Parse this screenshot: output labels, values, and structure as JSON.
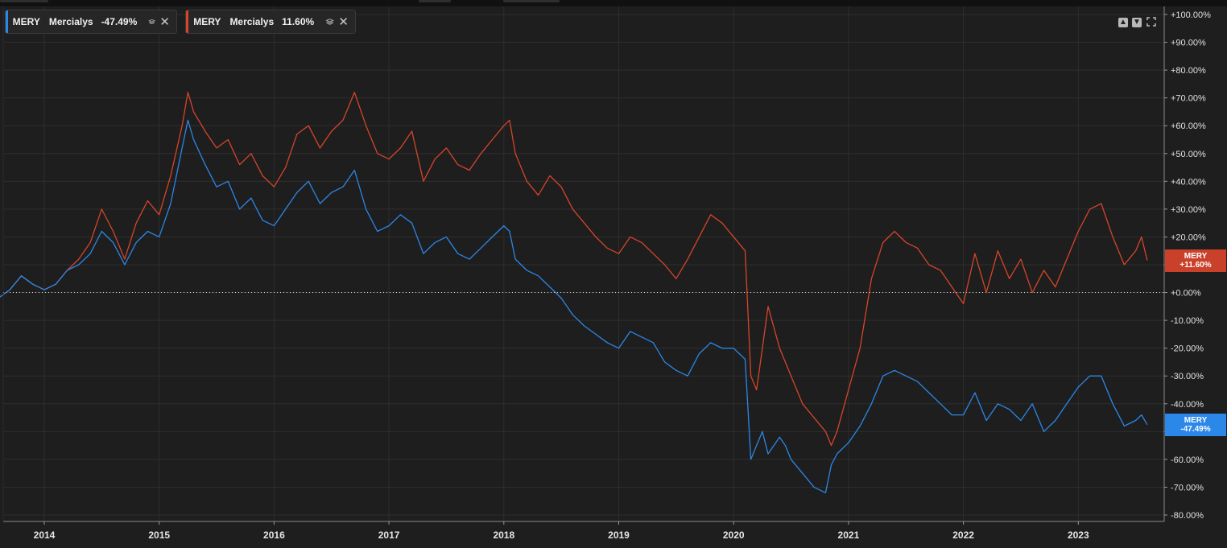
{
  "legend": [
    {
      "ticker": "MERY",
      "name": "Mercialys",
      "perf": "-47.49%",
      "color": "#2b87e8",
      "stack_icon": "stack-icon",
      "close_icon": "close-icon",
      "close_glyph": "✕"
    },
    {
      "ticker": "MERY",
      "name": "Mercialys",
      "perf": "11.60%",
      "color": "#d5452a",
      "stack_icon": "stack-icon",
      "close_icon": "close-icon",
      "close_glyph": "✕"
    }
  ],
  "controls": {
    "up_icon": "arrow-up-icon",
    "down_icon": "arrow-down-icon",
    "expand_icon": "expand-icon"
  },
  "price_tags": [
    {
      "ticker": "MERY",
      "value": "+11.60%",
      "color": "#c9412a"
    },
    {
      "ticker": "MERY",
      "value": "-47.49%",
      "color": "#2b87e8"
    }
  ],
  "chart_data": {
    "type": "line",
    "y_axis_position": "right",
    "grid": true,
    "ylim": [
      -80,
      100
    ],
    "yticks": [
      100,
      90,
      80,
      70,
      60,
      50,
      40,
      30,
      20,
      10,
      0,
      -10,
      -20,
      -30,
      -40,
      -50,
      -60,
      -70,
      -80
    ],
    "ytick_labels": [
      "+100.00%",
      "+90.00%",
      "+80.00%",
      "+70.00%",
      "+60.00%",
      "+50.00%",
      "+40.00%",
      "+30.00%",
      "+20.00%",
      "+10.00%",
      "+0.00%",
      "-10.00%",
      "-20.00%",
      "-30.00%",
      "-40.00%",
      "-50.00%",
      "-60.00%",
      "-70.00%",
      "-80.00%"
    ],
    "xlim": [
      2013.6,
      2023.8
    ],
    "xticks": [
      2014,
      2015,
      2016,
      2017,
      2018,
      2019,
      2020,
      2021,
      2022,
      2023
    ],
    "xtick_labels": [
      "2014",
      "2015",
      "2016",
      "2017",
      "2018",
      "2019",
      "2020",
      "2021",
      "2022",
      "2023"
    ],
    "reference_line": 0,
    "series": [
      {
        "name": "MERY Mercialys 11.60%",
        "color": "#d5452a",
        "x": [
          2013.6,
          2013.7,
          2013.8,
          2013.9,
          2014.0,
          2014.1,
          2014.2,
          2014.3,
          2014.4,
          2014.5,
          2014.6,
          2014.7,
          2014.8,
          2014.9,
          2015.0,
          2015.1,
          2015.2,
          2015.25,
          2015.3,
          2015.4,
          2015.5,
          2015.6,
          2015.7,
          2015.8,
          2015.9,
          2016.0,
          2016.1,
          2016.2,
          2016.3,
          2016.4,
          2016.5,
          2016.6,
          2016.7,
          2016.8,
          2016.9,
          2017.0,
          2017.1,
          2017.2,
          2017.3,
          2017.4,
          2017.5,
          2017.6,
          2017.7,
          2017.8,
          2017.9,
          2018.0,
          2018.05,
          2018.1,
          2018.2,
          2018.3,
          2018.4,
          2018.5,
          2018.6,
          2018.7,
          2018.8,
          2018.9,
          2019.0,
          2019.1,
          2019.2,
          2019.3,
          2019.4,
          2019.5,
          2019.6,
          2019.7,
          2019.8,
          2019.9,
          2020.0,
          2020.1,
          2020.15,
          2020.2,
          2020.25,
          2020.3,
          2020.4,
          2020.45,
          2020.5,
          2020.6,
          2020.7,
          2020.8,
          2020.85,
          2020.9,
          2021.0,
          2021.1,
          2021.2,
          2021.3,
          2021.4,
          2021.5,
          2021.6,
          2021.7,
          2021.8,
          2021.9,
          2022.0,
          2022.1,
          2022.2,
          2022.3,
          2022.4,
          2022.5,
          2022.6,
          2022.7,
          2022.8,
          2022.9,
          2023.0,
          2023.1,
          2023.2,
          2023.3,
          2023.4,
          2023.5,
          2023.55,
          2023.6
        ],
        "y": [
          -2,
          1,
          6,
          3,
          1,
          3,
          8,
          12,
          18,
          30,
          22,
          12,
          25,
          33,
          28,
          42,
          60,
          72,
          65,
          58,
          52,
          55,
          46,
          50,
          42,
          38,
          45,
          57,
          60,
          52,
          58,
          62,
          72,
          60,
          50,
          48,
          52,
          58,
          40,
          48,
          52,
          46,
          44,
          50,
          55,
          60,
          62,
          50,
          40,
          35,
          42,
          38,
          30,
          25,
          20,
          16,
          14,
          20,
          18,
          14,
          10,
          5,
          12,
          20,
          28,
          25,
          20,
          15,
          -30,
          -35,
          -20,
          -5,
          -20,
          -25,
          -30,
          -40,
          -45,
          -50,
          -55,
          -50,
          -35,
          -20,
          5,
          18,
          22,
          18,
          16,
          10,
          8,
          2,
          -4,
          14,
          0,
          15,
          5,
          12,
          0,
          8,
          2,
          12,
          22,
          30,
          32,
          20,
          10,
          15,
          20,
          11.6
        ]
      },
      {
        "name": "MERY Mercialys -47.49%",
        "color": "#2b87e8",
        "x": [
          2013.6,
          2013.7,
          2013.8,
          2013.9,
          2014.0,
          2014.1,
          2014.2,
          2014.3,
          2014.4,
          2014.5,
          2014.6,
          2014.7,
          2014.8,
          2014.9,
          2015.0,
          2015.1,
          2015.2,
          2015.25,
          2015.3,
          2015.4,
          2015.5,
          2015.6,
          2015.7,
          2015.8,
          2015.9,
          2016.0,
          2016.1,
          2016.2,
          2016.3,
          2016.4,
          2016.5,
          2016.6,
          2016.7,
          2016.8,
          2016.9,
          2017.0,
          2017.1,
          2017.2,
          2017.3,
          2017.4,
          2017.5,
          2017.6,
          2017.7,
          2017.8,
          2017.9,
          2018.0,
          2018.05,
          2018.1,
          2018.2,
          2018.3,
          2018.4,
          2018.5,
          2018.6,
          2018.7,
          2018.8,
          2018.9,
          2019.0,
          2019.1,
          2019.2,
          2019.3,
          2019.4,
          2019.5,
          2019.6,
          2019.7,
          2019.8,
          2019.9,
          2020.0,
          2020.1,
          2020.15,
          2020.2,
          2020.25,
          2020.3,
          2020.4,
          2020.45,
          2020.5,
          2020.6,
          2020.7,
          2020.8,
          2020.85,
          2020.9,
          2021.0,
          2021.1,
          2021.2,
          2021.3,
          2021.4,
          2021.5,
          2021.6,
          2021.7,
          2021.8,
          2021.9,
          2022.0,
          2022.1,
          2022.2,
          2022.3,
          2022.4,
          2022.5,
          2022.6,
          2022.7,
          2022.8,
          2022.9,
          2023.0,
          2023.1,
          2023.2,
          2023.3,
          2023.4,
          2023.5,
          2023.55,
          2023.6
        ],
        "y": [
          -2,
          1,
          6,
          3,
          1,
          3,
          8,
          10,
          14,
          22,
          18,
          10,
          18,
          22,
          20,
          32,
          52,
          62,
          55,
          46,
          38,
          40,
          30,
          34,
          26,
          24,
          30,
          36,
          40,
          32,
          36,
          38,
          44,
          30,
          22,
          24,
          28,
          25,
          14,
          18,
          20,
          14,
          12,
          16,
          20,
          24,
          22,
          12,
          8,
          6,
          2,
          -2,
          -8,
          -12,
          -15,
          -18,
          -20,
          -14,
          -16,
          -18,
          -25,
          -28,
          -30,
          -22,
          -18,
          -20,
          -20,
          -24,
          -60,
          -55,
          -50,
          -58,
          -52,
          -55,
          -60,
          -65,
          -70,
          -72,
          -62,
          -58,
          -54,
          -48,
          -40,
          -30,
          -28,
          -30,
          -32,
          -36,
          -40,
          -44,
          -44,
          -36,
          -46,
          -40,
          -42,
          -46,
          -40,
          -50,
          -46,
          -40,
          -34,
          -30,
          -30,
          -40,
          -48,
          -46,
          -44,
          -47.49
        ]
      }
    ]
  }
}
